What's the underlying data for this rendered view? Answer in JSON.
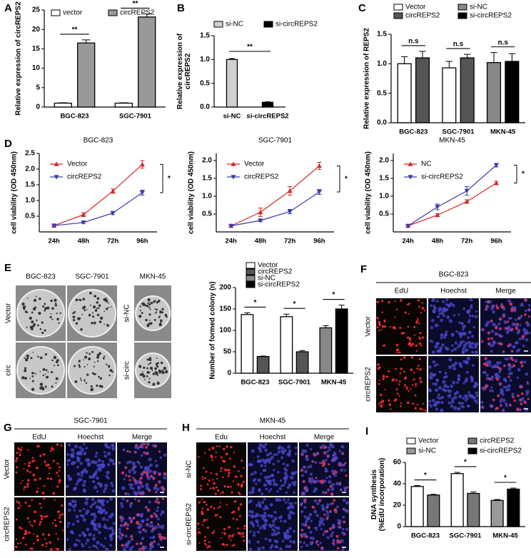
{
  "chart_data": [
    {
      "label": "A",
      "type": "bar",
      "ylabel": [
        "Relative expression of circREPS2"
      ],
      "categories": [
        "BGC-823",
        "SGC-7901"
      ],
      "series": [
        {
          "name": "vector",
          "color": "#ffffff",
          "values": [
            1.0,
            1.0
          ],
          "errors": [
            0.1,
            0.1
          ]
        },
        {
          "name": "circREPS2",
          "color": "#999999",
          "values": [
            16.5,
            23.2
          ],
          "errors": [
            0.8,
            0.8
          ]
        }
      ],
      "ylim": [
        0,
        25
      ],
      "yticks": [
        0,
        5,
        10,
        15,
        20,
        25
      ],
      "annotations": [
        "**",
        "**"
      ]
    },
    {
      "label": "B",
      "type": "bar",
      "ylabel": [
        "Relative expression of",
        "circREPS2"
      ],
      "categories": [
        "si-NC",
        "si-circREPS2"
      ],
      "series": [
        {
          "name": "si-NC",
          "color": "#d0d0d0",
          "values": [
            1.0,
            null
          ],
          "errors": [
            0.02,
            null
          ]
        },
        {
          "name": "si-circREPS2",
          "color": "#000000",
          "values": [
            null,
            0.1
          ],
          "errors": [
            null,
            0.01
          ]
        }
      ],
      "ylim": [
        0,
        1.5
      ],
      "yticks": [
        {
          "value": 0,
          "label": "0.0"
        },
        {
          "value": 0.5,
          "label": "0.5"
        },
        {
          "value": 1,
          "label": "1.0"
        },
        {
          "value": 1.5,
          "label": "1.5"
        }
      ],
      "annotations": [
        "**"
      ]
    },
    {
      "label": "C",
      "type": "bar",
      "ylabel": [
        "Relative expression of REPS2"
      ],
      "categories": [
        "BGC-823",
        "SGC-7901",
        "MKN-45"
      ],
      "series": [
        {
          "name": "Vector",
          "color": "#ffffff",
          "values": [
            1.0,
            0.93,
            null
          ],
          "errors": [
            0.12,
            0.11,
            null
          ]
        },
        {
          "name": "si-NC",
          "color": "#888888",
          "values": [
            null,
            null,
            1.02
          ],
          "errors": [
            null,
            null,
            0.17
          ]
        },
        {
          "name": "circREPS2",
          "color": "#555555",
          "values": [
            1.1,
            1.1,
            null
          ],
          "errors": [
            0.11,
            0.06,
            null
          ]
        },
        {
          "name": "si-circREPS2",
          "color": "#000000",
          "values": [
            null,
            null,
            1.04
          ],
          "errors": [
            null,
            null,
            0.13
          ]
        }
      ],
      "ylim": [
        0,
        1.5
      ],
      "yticks": [
        {
          "value": 0,
          "label": "0.0"
        },
        {
          "value": 0.5,
          "label": "0.5"
        },
        {
          "value": 1,
          "label": "1.0"
        },
        {
          "value": 1.5,
          "label": "1.5"
        }
      ],
      "annotations": [
        "n.s",
        "n.s",
        "n.s"
      ]
    },
    {
      "label": "D",
      "type": "line",
      "title": "BGC-823",
      "ylabel": [
        "cell viability (OD 450nm)"
      ],
      "categories": [
        "24h",
        "48h",
        "72h",
        "96h"
      ],
      "series": [
        {
          "name": "Vector",
          "color": "#d62728",
          "marker": "triangle-up",
          "values": [
            0.2,
            0.55,
            1.3,
            2.15
          ],
          "errors": [
            0.04,
            0.06,
            0.07,
            0.12
          ]
        },
        {
          "name": "circREPS2",
          "color": "#3a3aa8",
          "marker": "triangle-down",
          "values": [
            0.2,
            0.3,
            0.6,
            1.25
          ],
          "errors": [
            0.03,
            0.03,
            0.05,
            0.08
          ]
        }
      ],
      "ylim": [
        0,
        2.5
      ],
      "yticks": [
        {
          "value": 0.5,
          "label": "0.5"
        },
        {
          "value": 1,
          "label": "1.0"
        },
        {
          "value": 1.5,
          "label": "1.5"
        },
        {
          "value": 2,
          "label": "2.0"
        },
        {
          "value": 2.5,
          "label": "2.5"
        }
      ],
      "annotations": [
        "*"
      ]
    },
    {
      "type": "line",
      "title": "SGC-7901",
      "ylabel": [
        "cell viability (OD 450nm)"
      ],
      "categories": [
        "24h",
        "48h",
        "72h",
        "96h"
      ],
      "series": [
        {
          "name": "Vector",
          "color": "#d62728",
          "marker": "triangle-up",
          "values": [
            0.17,
            0.55,
            1.15,
            1.85
          ],
          "errors": [
            0.03,
            0.12,
            0.12,
            0.1
          ]
        },
        {
          "name": "circREPS2",
          "color": "#3a3aa8",
          "marker": "triangle-down",
          "values": [
            0.17,
            0.32,
            0.57,
            1.12
          ],
          "errors": [
            0.03,
            0.03,
            0.06,
            0.07
          ]
        }
      ],
      "ylim": [
        0,
        2.2
      ],
      "yticks": [
        {
          "value": 0.5,
          "label": "0.5"
        },
        {
          "value": 1,
          "label": "1.0"
        },
        {
          "value": 1.5,
          "label": "1.5"
        },
        {
          "value": 2,
          "label": "2.0"
        }
      ],
      "annotations": [
        "*"
      ]
    },
    {
      "type": "line",
      "title": "MKN-45",
      "ylabel": [
        "cell viability (OD 450nm)"
      ],
      "categories": [
        "24h",
        "48h",
        "72h",
        "96h"
      ],
      "series": [
        {
          "name": "NC",
          "color": "#d62728",
          "marker": "triangle-up",
          "values": [
            0.17,
            0.47,
            0.85,
            1.37
          ],
          "errors": [
            0.03,
            0.04,
            0.05,
            0.05
          ]
        },
        {
          "name": "si-circREPS2",
          "color": "#3a3aa8",
          "marker": "triangle-down",
          "values": [
            0.17,
            0.7,
            1.15,
            1.87
          ],
          "errors": [
            0.03,
            0.08,
            0.12,
            0.05
          ]
        }
      ],
      "ylim": [
        0,
        2.2
      ],
      "yticks": [
        {
          "value": 0.5,
          "label": "0.5"
        },
        {
          "value": 1,
          "label": "1.0"
        },
        {
          "value": 1.5,
          "label": "1.5"
        },
        {
          "value": 2,
          "label": "2.0"
        }
      ],
      "annotations": [
        "*"
      ]
    },
    {
      "type": "bar",
      "ylabel": [
        "Number of formed colony (n)"
      ],
      "categories": [
        "BGC-823",
        "SGC-7901",
        "MKN-45"
      ],
      "series": [
        {
          "name": "Vector",
          "color": "#ffffff",
          "values": [
            137,
            132,
            null
          ],
          "errors": [
            4,
            6,
            null
          ]
        },
        {
          "name": "circREPS2",
          "color": "#555555",
          "values": [
            39,
            50,
            null
          ],
          "errors": [
            1,
            3,
            null
          ]
        },
        {
          "name": "si-NC",
          "color": "#888888",
          "values": [
            null,
            null,
            106
          ],
          "errors": [
            null,
            null,
            5
          ]
        },
        {
          "name": "si-circREPS2",
          "color": "#000000",
          "values": [
            null,
            null,
            150
          ],
          "errors": [
            null,
            null,
            9
          ]
        }
      ],
      "ylim": [
        0,
        200
      ],
      "yticks": [
        0,
        50,
        100,
        150,
        200
      ],
      "annotations": [
        "*",
        "*",
        "*"
      ]
    },
    {
      "label": "I",
      "type": "bar",
      "ylabel": [
        "DNA synthesis",
        "(%EdU incorporation)"
      ],
      "categories": [
        "BGC-823",
        "SGC-7901",
        "MKN-45"
      ],
      "series": [
        {
          "name": "Vector",
          "color": "#ffffff",
          "values": [
            37.5,
            49.5,
            null
          ],
          "errors": [
            0.8,
            1.2,
            null
          ]
        },
        {
          "name": "circREPS2",
          "color": "#777777",
          "values": [
            29.5,
            31,
            null
          ],
          "errors": [
            0.7,
            1.3,
            null
          ]
        },
        {
          "name": "si-NC",
          "color": "#999999",
          "values": [
            null,
            null,
            24.5
          ],
          "errors": [
            null,
            null,
            0.8
          ]
        },
        {
          "name": "si-circREPS2",
          "color": "#000000",
          "values": [
            null,
            null,
            35
          ],
          "errors": [
            null,
            null,
            1
          ]
        }
      ],
      "ylim": [
        0,
        60
      ],
      "yticks": [
        0,
        20,
        40,
        60
      ],
      "annotations": [
        "*",
        "*",
        "*"
      ]
    }
  ],
  "image_panels": [
    {
      "label": "E",
      "columns": [
        "BGC-823",
        "SGC-7901",
        "MKN-45"
      ],
      "rows": [
        "Vector",
        "circ"
      ],
      "rows2": [
        "si-NC",
        "si-circ"
      ]
    },
    {
      "label": "F",
      "title": "BGC-823",
      "columns": [
        "EdU",
        "Hoechst",
        "Merge"
      ],
      "rows": [
        "Vector",
        "circREPS2"
      ]
    },
    {
      "label": "G",
      "title": "SGC-7901",
      "columns": [
        "EdU",
        "Hoechst",
        "Merge"
      ],
      "rows": [
        "Vector",
        "circREPS2"
      ]
    },
    {
      "label": "H",
      "title": "MKN-45",
      "columns": [
        "Edu",
        "Hoechst",
        "Merge"
      ],
      "rows": [
        "si-NC",
        "si-circREPS2"
      ]
    }
  ]
}
